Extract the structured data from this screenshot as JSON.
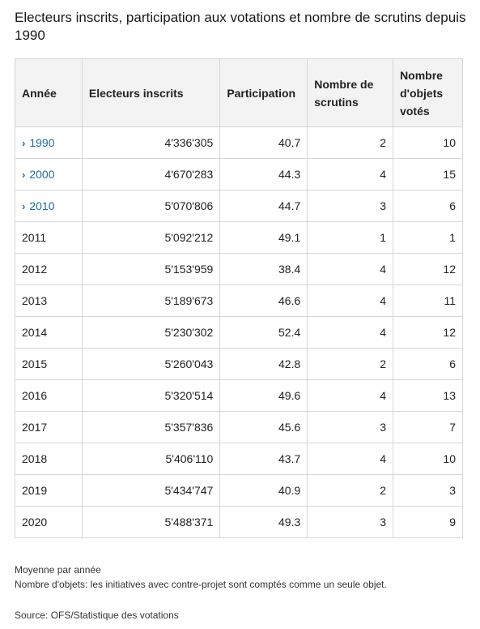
{
  "title": "Electeurs inscrits, participation aux votations et nombre de scrutins depuis 1990",
  "table": {
    "headers": [
      "Année",
      "Electeurs inscrits",
      "Participation",
      "Nombre de scrutins",
      "Nombre d'objets votés"
    ],
    "rows": [
      {
        "year": "1990",
        "expandable": true,
        "voters": "4'336'305",
        "participation": "40.7",
        "scrutins": "2",
        "objets": "10"
      },
      {
        "year": "2000",
        "expandable": true,
        "voters": "4'670'283",
        "participation": "44.3",
        "scrutins": "4",
        "objets": "15"
      },
      {
        "year": "2010",
        "expandable": true,
        "voters": "5'070'806",
        "participation": "44.7",
        "scrutins": "3",
        "objets": "6"
      },
      {
        "year": "2011",
        "expandable": false,
        "voters": "5'092'212",
        "participation": "49.1",
        "scrutins": "1",
        "objets": "1"
      },
      {
        "year": "2012",
        "expandable": false,
        "voters": "5'153'959",
        "participation": "38.4",
        "scrutins": "4",
        "objets": "12"
      },
      {
        "year": "2013",
        "expandable": false,
        "voters": "5'189'673",
        "participation": "46.6",
        "scrutins": "4",
        "objets": "11"
      },
      {
        "year": "2014",
        "expandable": false,
        "voters": "5'230'302",
        "participation": "52.4",
        "scrutins": "4",
        "objets": "12"
      },
      {
        "year": "2015",
        "expandable": false,
        "voters": "5'260'043",
        "participation": "42.8",
        "scrutins": "2",
        "objets": "6"
      },
      {
        "year": "2016",
        "expandable": false,
        "voters": "5'320'514",
        "participation": "49.6",
        "scrutins": "4",
        "objets": "13"
      },
      {
        "year": "2017",
        "expandable": false,
        "voters": "5'357'836",
        "participation": "45.6",
        "scrutins": "3",
        "objets": "7"
      },
      {
        "year": "2018",
        "expandable": false,
        "voters": "5'406'110",
        "participation": "43.7",
        "scrutins": "4",
        "objets": "10"
      },
      {
        "year": "2019",
        "expandable": false,
        "voters": "5'434'747",
        "participation": "40.9",
        "scrutins": "2",
        "objets": "3"
      },
      {
        "year": "2020",
        "expandable": false,
        "voters": "5'488'371",
        "participation": "49.3",
        "scrutins": "3",
        "objets": "9"
      }
    ]
  },
  "notes": [
    "Moyenne par année",
    "Nombre d'objets: les initiatives avec contre-projet sont comptés comme un seule objet."
  ],
  "source": "Source: OFS/Statistique des votations",
  "colors": {
    "link": "#1a6ea0",
    "header_bg": "#f3f3f3",
    "border": "#d6d6d6"
  },
  "icons": {
    "expand": "chevron-right-icon"
  }
}
